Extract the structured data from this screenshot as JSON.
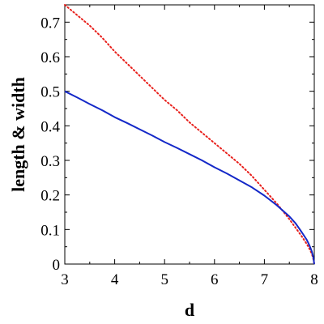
{
  "chart_data": {
    "type": "line",
    "xlabel": "d",
    "ylabel": "length & width",
    "xlim": [
      3,
      8
    ],
    "ylim": [
      0,
      0.75
    ],
    "x_ticks": [
      "3",
      "4",
      "5",
      "6",
      "7",
      "8"
    ],
    "y_ticks": [
      "0",
      "0.1",
      "0.2",
      "0.3",
      "0.4",
      "0.5",
      "0.6",
      "0.7"
    ],
    "grid": false,
    "series": [
      {
        "style": "dotted",
        "color": "#e8201c",
        "x": [
          3.0,
          3.25,
          3.5,
          3.75,
          4.0,
          4.25,
          4.5,
          4.75,
          5.0,
          5.25,
          5.5,
          5.75,
          6.0,
          6.25,
          6.5,
          6.75,
          7.0,
          7.25,
          7.5,
          7.625,
          7.75,
          7.85,
          7.9,
          7.95,
          7.98,
          8.0
        ],
        "y": [
          0.75,
          0.72,
          0.69,
          0.655,
          0.615,
          0.58,
          0.545,
          0.51,
          0.475,
          0.445,
          0.41,
          0.38,
          0.35,
          0.32,
          0.29,
          0.255,
          0.215,
          0.175,
          0.13,
          0.105,
          0.08,
          0.058,
          0.045,
          0.03,
          0.015,
          0.0
        ]
      },
      {
        "style": "solid",
        "color": "#1428c8",
        "x": [
          3.0,
          3.25,
          3.5,
          3.75,
          4.0,
          4.25,
          4.5,
          4.75,
          5.0,
          5.25,
          5.5,
          5.75,
          6.0,
          6.25,
          6.5,
          6.75,
          7.0,
          7.25,
          7.5,
          7.625,
          7.75,
          7.85,
          7.9,
          7.95,
          7.98,
          8.0
        ],
        "y": [
          0.5,
          0.482,
          0.463,
          0.445,
          0.425,
          0.408,
          0.39,
          0.372,
          0.353,
          0.336,
          0.318,
          0.3,
          0.28,
          0.262,
          0.242,
          0.222,
          0.198,
          0.17,
          0.138,
          0.118,
          0.092,
          0.07,
          0.055,
          0.037,
          0.02,
          0.0
        ]
      }
    ]
  }
}
